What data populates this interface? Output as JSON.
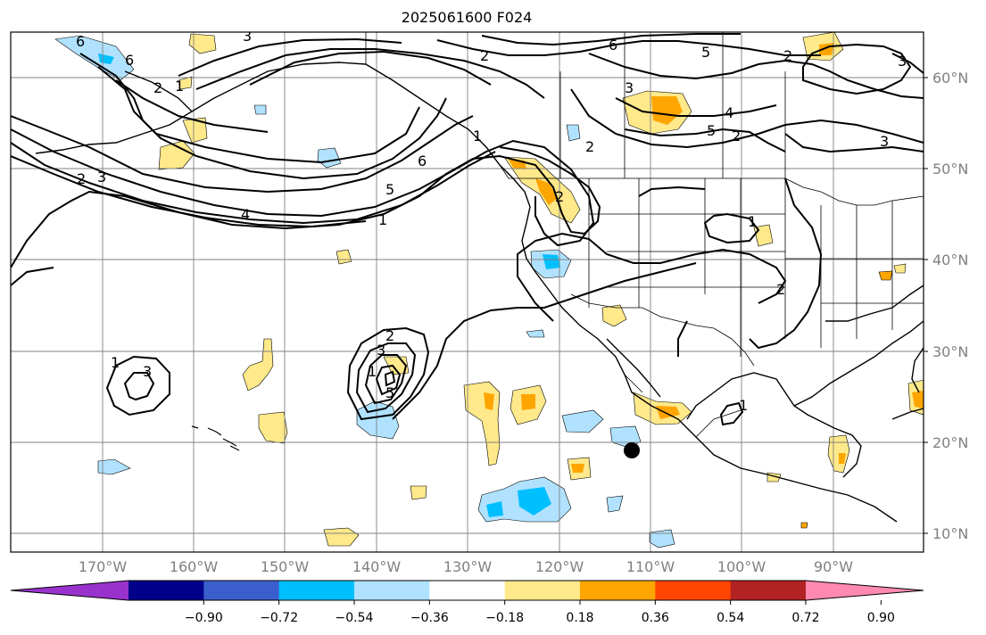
{
  "title": "2025061600 F024",
  "lat_labels": [
    "60°N",
    "50°N",
    "40°N",
    "30°N",
    "20°N",
    "10°N"
  ],
  "lon_labels": [
    "170°W",
    "160°W",
    "150°W",
    "140°W",
    "130°W",
    "120°W",
    "110°W",
    "100°W",
    "90°W"
  ],
  "colorbar": {
    "colors": [
      "#9932cc",
      "#00008b",
      "#3a5fcd",
      "#00bfff",
      "#b0e2ff",
      "#ffffff",
      "#ffe98a",
      "#ffa500",
      "#ff4500",
      "#b22222",
      "#ff89b0"
    ],
    "tick_labels": [
      "−0.90",
      "−0.72",
      "−0.54",
      "−0.36",
      "−0.18",
      "0.18",
      "0.36",
      "0.54",
      "0.72",
      "0.90"
    ]
  },
  "contour_labels": [
    "6",
    "3",
    "2",
    "1",
    "6",
    "2",
    "3",
    "6",
    "5",
    "4",
    "5",
    "3",
    "2",
    "3",
    "1",
    "2",
    "2",
    "4",
    "6",
    "5",
    "1",
    "1",
    "2",
    "1",
    "3",
    "2",
    "3",
    "1",
    "2",
    "5",
    "3",
    "2",
    "1"
  ]
}
